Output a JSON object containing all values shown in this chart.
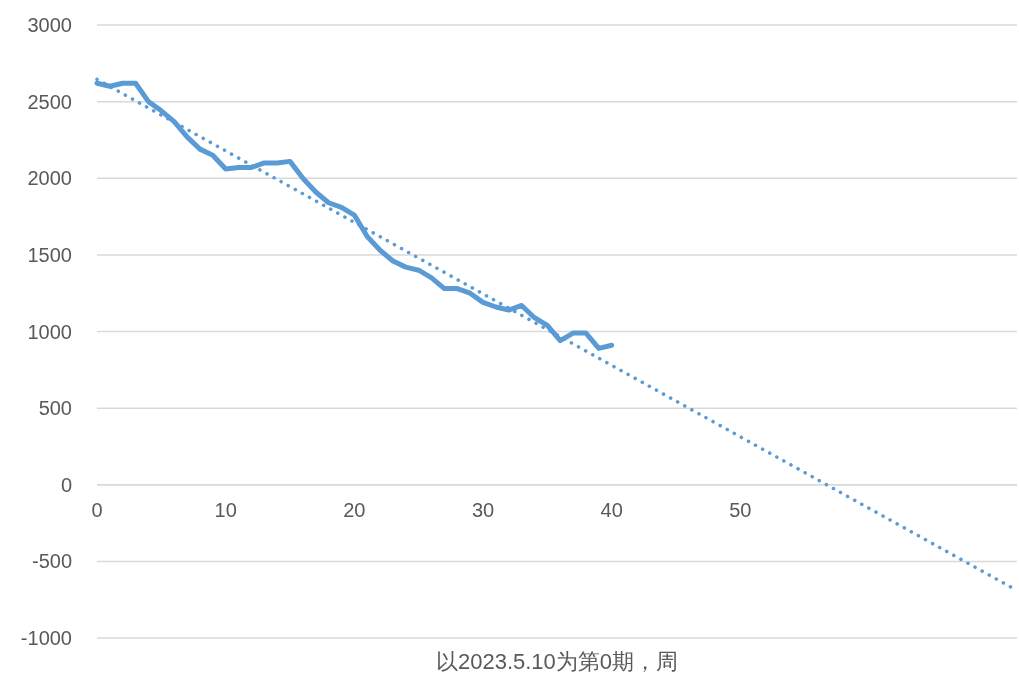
{
  "chart_data": {
    "type": "line",
    "xlabel": "以2023.5.10为第0期，周",
    "xlim": [
      0,
      71.5
    ],
    "xticks": [
      0,
      10,
      20,
      30,
      40,
      50
    ],
    "ylim": [
      -1000,
      3000
    ],
    "yticks": [
      -1000,
      -500,
      0,
      500,
      1000,
      1500,
      2000,
      2500,
      3000
    ],
    "grid": "y",
    "marker": "none",
    "series": [
      {
        "color": "#5b9bd5",
        "line_style": "solid",
        "x": [
          0,
          1,
          2,
          3,
          4,
          5,
          6,
          7,
          8,
          9,
          10,
          11,
          12,
          13,
          14,
          15,
          16,
          17,
          18,
          19,
          20,
          21,
          22,
          23,
          24,
          25,
          26,
          27,
          28,
          29,
          30,
          31,
          32,
          33,
          34,
          35,
          36,
          37,
          38,
          39,
          40
        ],
        "values": [
          2620,
          2600,
          2620,
          2620,
          2500,
          2440,
          2370,
          2270,
          2190,
          2150,
          2060,
          2070,
          2070,
          2100,
          2100,
          2110,
          2000,
          1910,
          1840,
          1810,
          1760,
          1620,
          1530,
          1460,
          1420,
          1400,
          1350,
          1280,
          1280,
          1250,
          1190,
          1160,
          1140,
          1170,
          1090,
          1040,
          940,
          990,
          990,
          890,
          910
        ]
      },
      {
        "type": "line",
        "color": "#5b9bd5",
        "line_style": "dotted",
        "x": [
          0,
          71.5
        ],
        "values": [
          2645,
          -690
        ]
      }
    ]
  }
}
